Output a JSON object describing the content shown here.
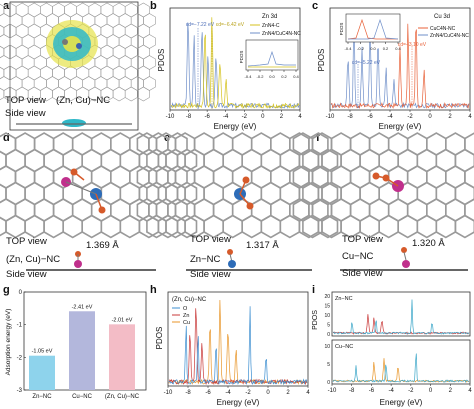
{
  "figure": {
    "panels": [
      {
        "id": "a",
        "label": "a"
      },
      {
        "id": "b",
        "label": "b"
      },
      {
        "id": "c",
        "label": "c"
      },
      {
        "id": "d",
        "label": "d"
      },
      {
        "id": "e",
        "label": "e"
      },
      {
        "id": "f",
        "label": "f"
      },
      {
        "id": "g",
        "label": "g"
      },
      {
        "id": "h",
        "label": "h"
      },
      {
        "id": "i",
        "label": "i"
      }
    ]
  },
  "panel_a": {
    "top_view": "TOP view",
    "species": "(Zn, Cu)−NC",
    "side_view": "Side view"
  },
  "panel_d": {
    "top_view": "TOP view",
    "species": "(Zn, Cu)−NC",
    "bond": "1.369 Å",
    "side_view": "Side view"
  },
  "panel_e": {
    "top_view": "TOP view",
    "species": "Zn−NC",
    "bond": "1.317 Å",
    "side_view": "Side view"
  },
  "panel_f": {
    "top_view": "TOP view",
    "species": "Cu−NC",
    "bond": "1.320 Å",
    "side_view": "Side view"
  },
  "chart_data": [
    {
      "id": "b",
      "type": "line",
      "title": "Zn 3d",
      "xlabel": "Energy (eV)",
      "ylabel": "PDOS",
      "xlim": [
        -10,
        4
      ],
      "xticks": [
        "-10",
        "-8",
        "-6",
        "-4",
        "-2",
        "0",
        "2",
        "4"
      ],
      "series": [
        {
          "name": "ZnN4-C",
          "color": "#d4c21c"
        },
        {
          "name": "ZnN4/CuC4N-NC",
          "color": "#6f8fc9"
        }
      ],
      "annotations": [
        "εd=−7.22 eV",
        "εd=−6.42 eV"
      ],
      "inset": {
        "xticks": [
          "-0.4",
          "-0.2",
          "0.0",
          "0.2",
          "0.4"
        ],
        "ylabel": "PDOS"
      }
    },
    {
      "id": "c",
      "type": "line",
      "title": "Cu 3d",
      "xlabel": "Energy (eV)",
      "ylabel": "PDOS",
      "xlim": [
        -10,
        4
      ],
      "xticks": [
        "-10",
        "-8",
        "-6",
        "-4",
        "-2",
        "0",
        "2",
        "4"
      ],
      "series": [
        {
          "name": "CuC4N-NC",
          "color": "#e8623a"
        },
        {
          "name": "ZnN4/CuC4N-NC",
          "color": "#6f8fc9"
        }
      ],
      "annotations": [
        "εd=−5.22 eV",
        "εd=−3.10 eV"
      ],
      "inset": {
        "xticks": [
          "-0.4",
          "-0.2",
          "0.0",
          "0.2",
          "0.4"
        ],
        "ylabel": "PDOS"
      }
    },
    {
      "id": "g",
      "type": "bar",
      "ylabel": "Adsorption energy (eV)",
      "categories": [
        "Zn−NC",
        "Cu−NC",
        "(Zn, Cu)−NC"
      ],
      "values": [
        -1.05,
        -2.41,
        -2.01
      ],
      "value_labels": [
        "-1.05 eV",
        "-2.41 eV",
        "-2.01 eV"
      ],
      "colors": [
        "#8ed3ec",
        "#b3b7dc",
        "#f3bcc6"
      ],
      "ylim": [
        -3,
        0
      ],
      "yticks": [
        "-3",
        "-2",
        "-1",
        "0"
      ]
    },
    {
      "id": "h",
      "type": "line",
      "title": "(Zn, Cu)−NC",
      "xlabel": "Energy (eV)",
      "ylabel": "PDOS",
      "xlim": [
        -10,
        4
      ],
      "xticks": [
        "-10",
        "-8",
        "-6",
        "-4",
        "-2",
        "0",
        "2",
        "4"
      ],
      "series": [
        {
          "name": "O",
          "color": "#3d8fd1"
        },
        {
          "name": "Zn",
          "color": "#c93a3a"
        },
        {
          "name": "Cu",
          "color": "#e8962a"
        }
      ]
    },
    {
      "id": "i",
      "type": "line",
      "xlabel": "Energy (eV)",
      "ylabel": "PDOS",
      "xlim": [
        -10,
        4
      ],
      "xticks": [
        "-10",
        "-8",
        "-6",
        "-4",
        "-2",
        "0",
        "2",
        "4"
      ],
      "subplots": [
        {
          "title": "Zn−NC",
          "yticks": [
            "0",
            "5",
            "10",
            "15",
            "20"
          ]
        },
        {
          "title": "Cu−NC",
          "yticks": [
            "0",
            "5",
            "10"
          ]
        }
      ],
      "series": [
        {
          "name": "O",
          "color": "#3da7c9"
        },
        {
          "name": "Zn",
          "color": "#c93a3a"
        },
        {
          "name": "Cu",
          "color": "#e8962a"
        }
      ]
    }
  ]
}
